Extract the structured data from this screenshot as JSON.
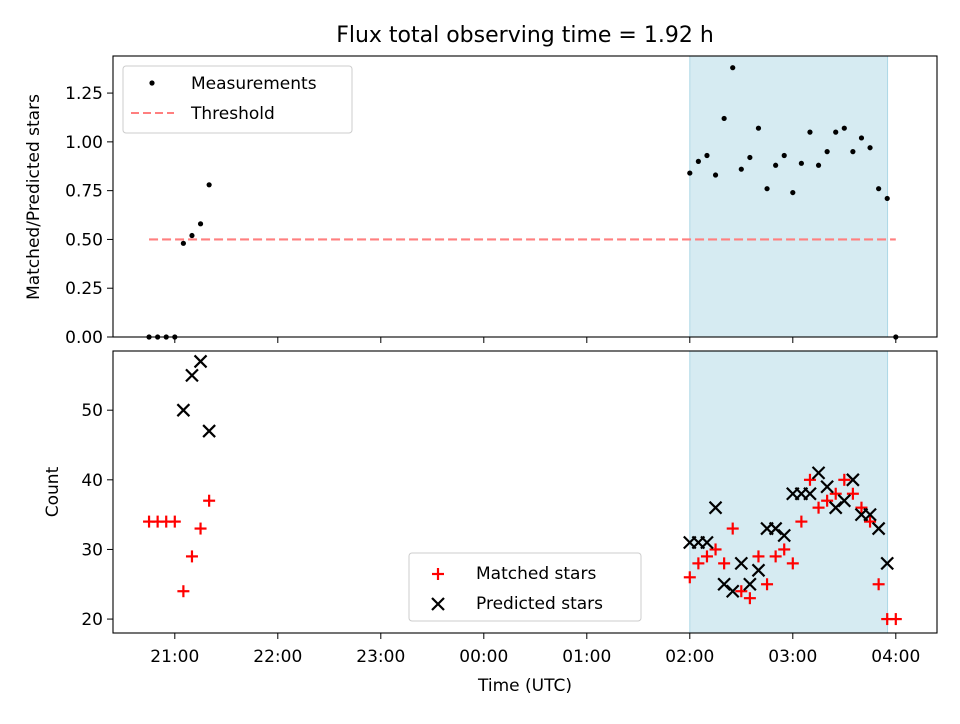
{
  "chart_data": [
    {
      "type": "scatter",
      "title": "Flux total observing time = 1.92 h",
      "xlabel": "",
      "ylabel": "Matched/Predicted stars",
      "ylim": [
        0,
        1.44
      ],
      "yticks": [
        "0.00",
        "0.25",
        "0.50",
        "0.75",
        "1.00",
        "1.25"
      ],
      "xlim_hours": [
        20.4,
        28.4
      ],
      "shaded_region_hours": [
        26.0,
        27.92
      ],
      "legend_position": "upper-left",
      "series": [
        {
          "name": "Measurements",
          "marker": "dot",
          "color": "#000000",
          "points": [
            [
              "20:45",
              0.0
            ],
            [
              "20:50",
              0.0
            ],
            [
              "20:55",
              0.0
            ],
            [
              "21:00",
              0.0
            ],
            [
              "21:05",
              0.48
            ],
            [
              "21:10",
              0.52
            ],
            [
              "21:15",
              0.58
            ],
            [
              "21:20",
              0.78
            ],
            [
              "02:00",
              0.84
            ],
            [
              "02:05",
              0.9
            ],
            [
              "02:10",
              0.93
            ],
            [
              "02:15",
              0.83
            ],
            [
              "02:20",
              1.12
            ],
            [
              "02:25",
              1.38
            ],
            [
              "02:30",
              0.86
            ],
            [
              "02:35",
              0.92
            ],
            [
              "02:40",
              1.07
            ],
            [
              "02:45",
              0.76
            ],
            [
              "02:50",
              0.88
            ],
            [
              "02:55",
              0.93
            ],
            [
              "03:00",
              0.74
            ],
            [
              "03:05",
              0.89
            ],
            [
              "03:10",
              1.05
            ],
            [
              "03:15",
              0.88
            ],
            [
              "03:20",
              0.95
            ],
            [
              "03:25",
              1.05
            ],
            [
              "03:30",
              1.07
            ],
            [
              "03:35",
              0.95
            ],
            [
              "03:40",
              1.02
            ],
            [
              "03:45",
              0.97
            ],
            [
              "03:50",
              0.76
            ],
            [
              "03:55",
              0.71
            ],
            [
              "04:00",
              0.0
            ]
          ]
        },
        {
          "name": "Threshold",
          "marker": "dashed-line",
          "color": "#ff7f7f",
          "points": [
            [
              "20:45",
              0.5
            ],
            [
              "04:00",
              0.5
            ]
          ]
        }
      ]
    },
    {
      "type": "scatter",
      "title": "",
      "xlabel": "Time (UTC)",
      "ylabel": "Count",
      "ylim": [
        18,
        58.5
      ],
      "yticks": [
        "20",
        "30",
        "40",
        "50"
      ],
      "xticks": [
        "21:00",
        "22:00",
        "23:00",
        "00:00",
        "01:00",
        "02:00",
        "03:00",
        "04:00"
      ],
      "xlim_hours": [
        20.4,
        28.4
      ],
      "shaded_region_hours": [
        26.0,
        27.92
      ],
      "legend_position": "lower-center",
      "series": [
        {
          "name": "Matched stars",
          "marker": "plus",
          "color": "#ff0000",
          "points": [
            [
              "20:45",
              34
            ],
            [
              "20:50",
              34
            ],
            [
              "20:55",
              34
            ],
            [
              "21:00",
              34
            ],
            [
              "21:05",
              24
            ],
            [
              "21:10",
              29
            ],
            [
              "21:15",
              33
            ],
            [
              "21:20",
              37
            ],
            [
              "02:00",
              26
            ],
            [
              "02:05",
              28
            ],
            [
              "02:10",
              29
            ],
            [
              "02:15",
              30
            ],
            [
              "02:20",
              28
            ],
            [
              "02:25",
              33
            ],
            [
              "02:30",
              24
            ],
            [
              "02:35",
              23
            ],
            [
              "02:40",
              29
            ],
            [
              "02:45",
              25
            ],
            [
              "02:50",
              29
            ],
            [
              "02:55",
              30
            ],
            [
              "03:00",
              28
            ],
            [
              "03:05",
              34
            ],
            [
              "03:10",
              40
            ],
            [
              "03:15",
              36
            ],
            [
              "03:20",
              37
            ],
            [
              "03:25",
              38
            ],
            [
              "03:30",
              40
            ],
            [
              "03:35",
              38
            ],
            [
              "03:40",
              36
            ],
            [
              "03:45",
              34
            ],
            [
              "03:50",
              25
            ],
            [
              "03:55",
              20
            ],
            [
              "04:00",
              20
            ]
          ]
        },
        {
          "name": "Predicted stars",
          "marker": "x",
          "color": "#000000",
          "points": [
            [
              "21:05",
              50
            ],
            [
              "21:10",
              55
            ],
            [
              "21:15",
              57
            ],
            [
              "21:20",
              47
            ],
            [
              "02:00",
              31
            ],
            [
              "02:05",
              31
            ],
            [
              "02:10",
              31
            ],
            [
              "02:15",
              36
            ],
            [
              "02:20",
              25
            ],
            [
              "02:25",
              24
            ],
            [
              "02:30",
              28
            ],
            [
              "02:35",
              25
            ],
            [
              "02:40",
              27
            ],
            [
              "02:45",
              33
            ],
            [
              "02:50",
              33
            ],
            [
              "02:55",
              32
            ],
            [
              "03:00",
              38
            ],
            [
              "03:05",
              38
            ],
            [
              "03:10",
              38
            ],
            [
              "03:15",
              41
            ],
            [
              "03:20",
              39
            ],
            [
              "03:25",
              36
            ],
            [
              "03:30",
              37
            ],
            [
              "03:35",
              40
            ],
            [
              "03:40",
              35
            ],
            [
              "03:45",
              35
            ],
            [
              "03:50",
              33
            ],
            [
              "03:55",
              28
            ]
          ]
        }
      ]
    }
  ]
}
